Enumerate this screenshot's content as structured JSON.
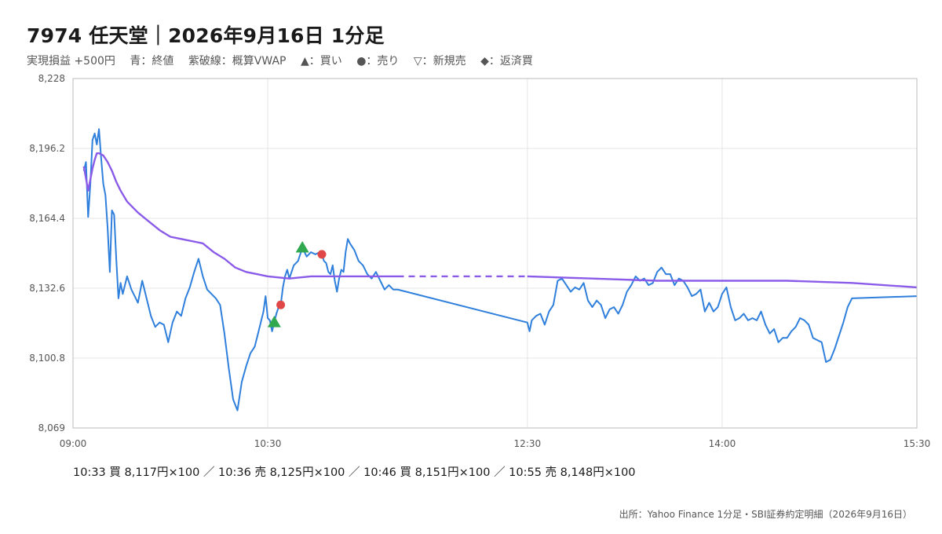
{
  "header": {
    "title": "7974 任天堂｜2026年9月16日 1分足",
    "legend": [
      "実現損益 +500円",
      "青：終値",
      "紫破線：概算VWAP",
      "▲：買い",
      "●：売り",
      "▽：新規売",
      "◆：返済買"
    ]
  },
  "footer": {
    "trades": "10:33 買 8,117円×100 ／ 10:36 売 8,125円×100 ／ 10:46 買 8,151円×100 ／ 10:55 売 8,148円×100",
    "source": "出所：Yahoo Finance 1分足・SBI証券約定明細（2026年9月16日）"
  },
  "colors": {
    "close": "#2f7fdc",
    "vwap": "#8a5be8",
    "buy": "#2fa84f",
    "sell": "#e04848",
    "grid": "#e6e6e6",
    "frame": "#bbbbbb"
  },
  "chart_data": {
    "type": "line",
    "ylim": [
      8069,
      8228
    ],
    "y_ticks": [
      "8,069",
      "8,100.8",
      "8,132.6",
      "8,164.4",
      "8,196.2",
      "8,228"
    ],
    "y_tick_values": [
      8069,
      8100.8,
      8132.6,
      8164.4,
      8196.2,
      8228
    ],
    "x_range": [
      "09:00",
      "15:30"
    ],
    "x_ticks": [
      "09:00",
      "10:30",
      "12:30",
      "14:00",
      "15:30"
    ],
    "break": {
      "start": "11:30",
      "end": "12:30"
    },
    "series": [
      {
        "key": "close",
        "points": [
          [
            "09:05",
            8186
          ],
          [
            "09:06",
            8190
          ],
          [
            "09:07",
            8165
          ],
          [
            "09:08",
            8180
          ],
          [
            "09:09",
            8200
          ],
          [
            "09:10",
            8203
          ],
          [
            "09:11",
            8198
          ],
          [
            "09:12",
            8205
          ],
          [
            "09:13",
            8192
          ],
          [
            "09:14",
            8180
          ],
          [
            "09:15",
            8175
          ],
          [
            "09:16",
            8160
          ],
          [
            "09:17",
            8140
          ],
          [
            "09:18",
            8168
          ],
          [
            "09:19",
            8166
          ],
          [
            "09:20",
            8146
          ],
          [
            "09:21",
            8128
          ],
          [
            "09:22",
            8135
          ],
          [
            "09:23",
            8130
          ],
          [
            "09:25",
            8138
          ],
          [
            "09:27",
            8132
          ],
          [
            "09:30",
            8126
          ],
          [
            "09:32",
            8136
          ],
          [
            "09:34",
            8128
          ],
          [
            "09:36",
            8120
          ],
          [
            "09:38",
            8115
          ],
          [
            "09:40",
            8117
          ],
          [
            "09:42",
            8116
          ],
          [
            "09:44",
            8108
          ],
          [
            "09:46",
            8117
          ],
          [
            "09:48",
            8122
          ],
          [
            "09:50",
            8120
          ],
          [
            "09:52",
            8128
          ],
          [
            "09:54",
            8133
          ],
          [
            "09:56",
            8140
          ],
          [
            "09:58",
            8146
          ],
          [
            "10:00",
            8138
          ],
          [
            "10:02",
            8132
          ],
          [
            "10:04",
            8130
          ],
          [
            "10:06",
            8128
          ],
          [
            "10:08",
            8125
          ],
          [
            "10:10",
            8112
          ],
          [
            "10:12",
            8096
          ],
          [
            "10:14",
            8082
          ],
          [
            "10:16",
            8077
          ],
          [
            "10:18",
            8090
          ],
          [
            "10:20",
            8097
          ],
          [
            "10:22",
            8103
          ],
          [
            "10:24",
            8106
          ],
          [
            "10:26",
            8114
          ],
          [
            "10:28",
            8122
          ],
          [
            "10:29",
            8129
          ],
          [
            "10:30",
            8119
          ],
          [
            "10:31",
            8118
          ],
          [
            "10:32",
            8113
          ],
          [
            "10:33",
            8117
          ],
          [
            "10:34",
            8121
          ],
          [
            "10:35",
            8124
          ],
          [
            "10:36",
            8125
          ],
          [
            "10:37",
            8133
          ],
          [
            "10:38",
            8138
          ],
          [
            "10:39",
            8141
          ],
          [
            "10:40",
            8137
          ],
          [
            "10:42",
            8143
          ],
          [
            "10:44",
            8145
          ],
          [
            "10:46",
            8151
          ],
          [
            "10:48",
            8147
          ],
          [
            "10:50",
            8149
          ],
          [
            "10:52",
            8148
          ],
          [
            "10:54",
            8149
          ],
          [
            "10:55",
            8148
          ],
          [
            "10:56",
            8145
          ],
          [
            "10:57",
            8144
          ],
          [
            "10:58",
            8140
          ],
          [
            "10:59",
            8139
          ],
          [
            "11:00",
            8143
          ],
          [
            "11:01",
            8136
          ],
          [
            "11:02",
            8131
          ],
          [
            "11:03",
            8137
          ],
          [
            "11:04",
            8141
          ],
          [
            "11:05",
            8140
          ],
          [
            "11:06",
            8149
          ],
          [
            "11:07",
            8155
          ],
          [
            "11:08",
            8153
          ],
          [
            "11:10",
            8150
          ],
          [
            "11:12",
            8145
          ],
          [
            "11:14",
            8143
          ],
          [
            "11:16",
            8139
          ],
          [
            "11:18",
            8137
          ],
          [
            "11:20",
            8140
          ],
          [
            "11:22",
            8136
          ],
          [
            "11:24",
            8132
          ],
          [
            "11:26",
            8134
          ],
          [
            "11:28",
            8132
          ],
          [
            "11:30",
            8132
          ],
          [
            "12:30",
            8117
          ],
          [
            "12:31",
            8113
          ],
          [
            "12:32",
            8118
          ],
          [
            "12:34",
            8120
          ],
          [
            "12:36",
            8121
          ],
          [
            "12:38",
            8116
          ],
          [
            "12:40",
            8122
          ],
          [
            "12:42",
            8125
          ],
          [
            "12:44",
            8136
          ],
          [
            "12:46",
            8137
          ],
          [
            "12:48",
            8134
          ],
          [
            "12:50",
            8131
          ],
          [
            "12:52",
            8133
          ],
          [
            "12:54",
            8132
          ],
          [
            "12:56",
            8135
          ],
          [
            "12:58",
            8127
          ],
          [
            "13:00",
            8124
          ],
          [
            "13:02",
            8127
          ],
          [
            "13:04",
            8125
          ],
          [
            "13:06",
            8119
          ],
          [
            "13:08",
            8123
          ],
          [
            "13:10",
            8124
          ],
          [
            "13:12",
            8121
          ],
          [
            "13:14",
            8125
          ],
          [
            "13:16",
            8131
          ],
          [
            "13:18",
            8134
          ],
          [
            "13:20",
            8138
          ],
          [
            "13:22",
            8136
          ],
          [
            "13:24",
            8137
          ],
          [
            "13:26",
            8134
          ],
          [
            "13:28",
            8135
          ],
          [
            "13:30",
            8140
          ],
          [
            "13:32",
            8142
          ],
          [
            "13:34",
            8139
          ],
          [
            "13:36",
            8139
          ],
          [
            "13:38",
            8134
          ],
          [
            "13:40",
            8137
          ],
          [
            "13:42",
            8136
          ],
          [
            "13:44",
            8133
          ],
          [
            "13:46",
            8129
          ],
          [
            "13:48",
            8130
          ],
          [
            "13:50",
            8132
          ],
          [
            "13:52",
            8122
          ],
          [
            "13:54",
            8126
          ],
          [
            "13:56",
            8122
          ],
          [
            "13:58",
            8124
          ],
          [
            "14:00",
            8130
          ],
          [
            "14:02",
            8133
          ],
          [
            "14:04",
            8124
          ],
          [
            "14:06",
            8118
          ],
          [
            "14:08",
            8119
          ],
          [
            "14:10",
            8121
          ],
          [
            "14:12",
            8118
          ],
          [
            "14:14",
            8119
          ],
          [
            "14:16",
            8118
          ],
          [
            "14:18",
            8122
          ],
          [
            "14:20",
            8116
          ],
          [
            "14:22",
            8112
          ],
          [
            "14:24",
            8114
          ],
          [
            "14:26",
            8108
          ],
          [
            "14:28",
            8110
          ],
          [
            "14:30",
            8110
          ],
          [
            "14:32",
            8113
          ],
          [
            "14:34",
            8115
          ],
          [
            "14:36",
            8119
          ],
          [
            "14:38",
            8118
          ],
          [
            "14:40",
            8116
          ],
          [
            "14:42",
            8110
          ],
          [
            "14:44",
            8109
          ],
          [
            "14:46",
            8108
          ],
          [
            "14:48",
            8099
          ],
          [
            "14:50",
            8100
          ],
          [
            "14:52",
            8105
          ],
          [
            "14:54",
            8111
          ],
          [
            "14:56",
            8117
          ],
          [
            "14:58",
            8124
          ],
          [
            "15:00",
            8128
          ],
          [
            "15:30",
            8129
          ]
        ]
      },
      {
        "key": "vwap",
        "points": [
          [
            "09:05",
            8188
          ],
          [
            "09:07",
            8177
          ],
          [
            "09:09",
            8187
          ],
          [
            "09:10",
            8191
          ],
          [
            "09:11",
            8194
          ],
          [
            "09:12",
            8194
          ],
          [
            "09:14",
            8193
          ],
          [
            "09:16",
            8190
          ],
          [
            "09:18",
            8186
          ],
          [
            "09:20",
            8181
          ],
          [
            "09:22",
            8177
          ],
          [
            "09:25",
            8172
          ],
          [
            "09:30",
            8167
          ],
          [
            "09:35",
            8163
          ],
          [
            "09:40",
            8159
          ],
          [
            "09:45",
            8156
          ],
          [
            "09:50",
            8155
          ],
          [
            "10:00",
            8153
          ],
          [
            "10:05",
            8149
          ],
          [
            "10:10",
            8146
          ],
          [
            "10:15",
            8142
          ],
          [
            "10:20",
            8140
          ],
          [
            "10:25",
            8139
          ],
          [
            "10:30",
            8138
          ],
          [
            "10:40",
            8137
          ],
          [
            "10:50",
            8138
          ],
          [
            "11:00",
            8138
          ],
          [
            "11:10",
            8138
          ],
          [
            "11:20",
            8138
          ],
          [
            "11:30",
            8138
          ],
          [
            "12:00",
            8138
          ],
          [
            "12:30",
            8138
          ],
          [
            "13:00",
            8137
          ],
          [
            "13:30",
            8136
          ],
          [
            "14:00",
            8136
          ],
          [
            "14:30",
            8136
          ],
          [
            "15:00",
            8135
          ],
          [
            "15:30",
            8133
          ]
        ]
      }
    ],
    "trades": [
      {
        "time": "10:33",
        "side": "buy",
        "price": 8117
      },
      {
        "time": "10:36",
        "side": "sell",
        "price": 8125
      },
      {
        "time": "10:46",
        "side": "buy",
        "price": 8151
      },
      {
        "time": "10:55",
        "side": "sell",
        "price": 8148
      }
    ]
  }
}
